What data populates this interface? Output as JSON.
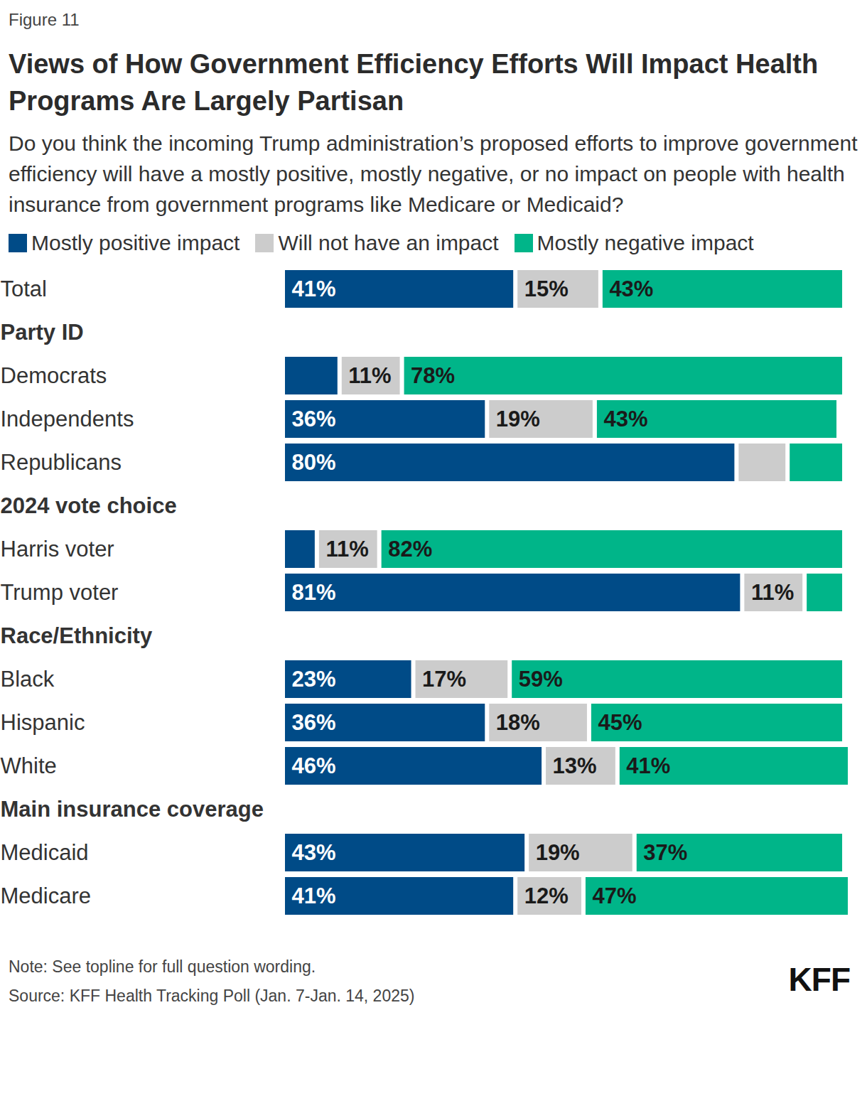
{
  "chart_data": {
    "type": "bar",
    "orientation": "horizontal",
    "stacked": true,
    "data_labels": true,
    "tick_labels": false,
    "grid": false,
    "figure_label": "Figure 11",
    "title": "Views of How Government Efficiency Efforts Will Impact Health Programs Are Largely Partisan",
    "subtitle": "Do you think the incoming Trump administration’s proposed efforts to improve government efficiency will have a mostly positive, mostly negative, or no impact on people with health insurance from government programs like Medicare or Medicaid?",
    "note": "Note: See topline for full question wording.",
    "source": "Source: KFF Health Tracking Poll (Jan. 7-Jan. 14, 2025)",
    "logo": "KFF",
    "xlim": [
      0,
      100
    ],
    "categories": [
      "Total",
      "Democrats",
      "Independents",
      "Republicans",
      "Harris voter",
      "Trump voter",
      "Black",
      "Hispanic",
      "White",
      "Medicaid",
      "Medicare"
    ],
    "groups": [
      {
        "name": "Party ID",
        "categories": [
          "Democrats",
          "Independents",
          "Republicans"
        ]
      },
      {
        "name": "2024 vote choice",
        "categories": [
          "Harris voter",
          "Trump voter"
        ]
      },
      {
        "name": "Race/Ethnicity",
        "categories": [
          "Black",
          "Hispanic",
          "White"
        ]
      },
      {
        "name": "Main insurance coverage",
        "categories": [
          "Medicaid",
          "Medicare"
        ]
      }
    ],
    "series": [
      {
        "name": "Mostly positive impact",
        "color": "#004b87",
        "values": [
          41,
          10,
          36,
          80,
          6,
          81,
          23,
          36,
          46,
          43,
          41
        ],
        "value_labels": [
          "41%",
          null,
          "36%",
          "80%",
          null,
          "81%",
          "23%",
          "36%",
          "46%",
          "43%",
          "41%"
        ]
      },
      {
        "name": "Will not have an impact",
        "color": "#cccccc",
        "values": [
          15,
          11,
          19,
          9,
          11,
          11,
          17,
          18,
          13,
          19,
          12
        ],
        "value_labels": [
          "15%",
          "11%",
          "19%",
          null,
          "11%",
          "11%",
          "17%",
          "18%",
          "13%",
          "19%",
          "12%"
        ]
      },
      {
        "name": "Mostly negative impact",
        "color": "#00b589",
        "values": [
          43,
          78,
          43,
          10,
          82,
          7,
          59,
          45,
          41,
          37,
          47
        ],
        "value_labels": [
          "43%",
          "78%",
          "43%",
          null,
          "82%",
          null,
          "59%",
          "45%",
          "41%",
          "37%",
          "47%"
        ]
      }
    ]
  }
}
